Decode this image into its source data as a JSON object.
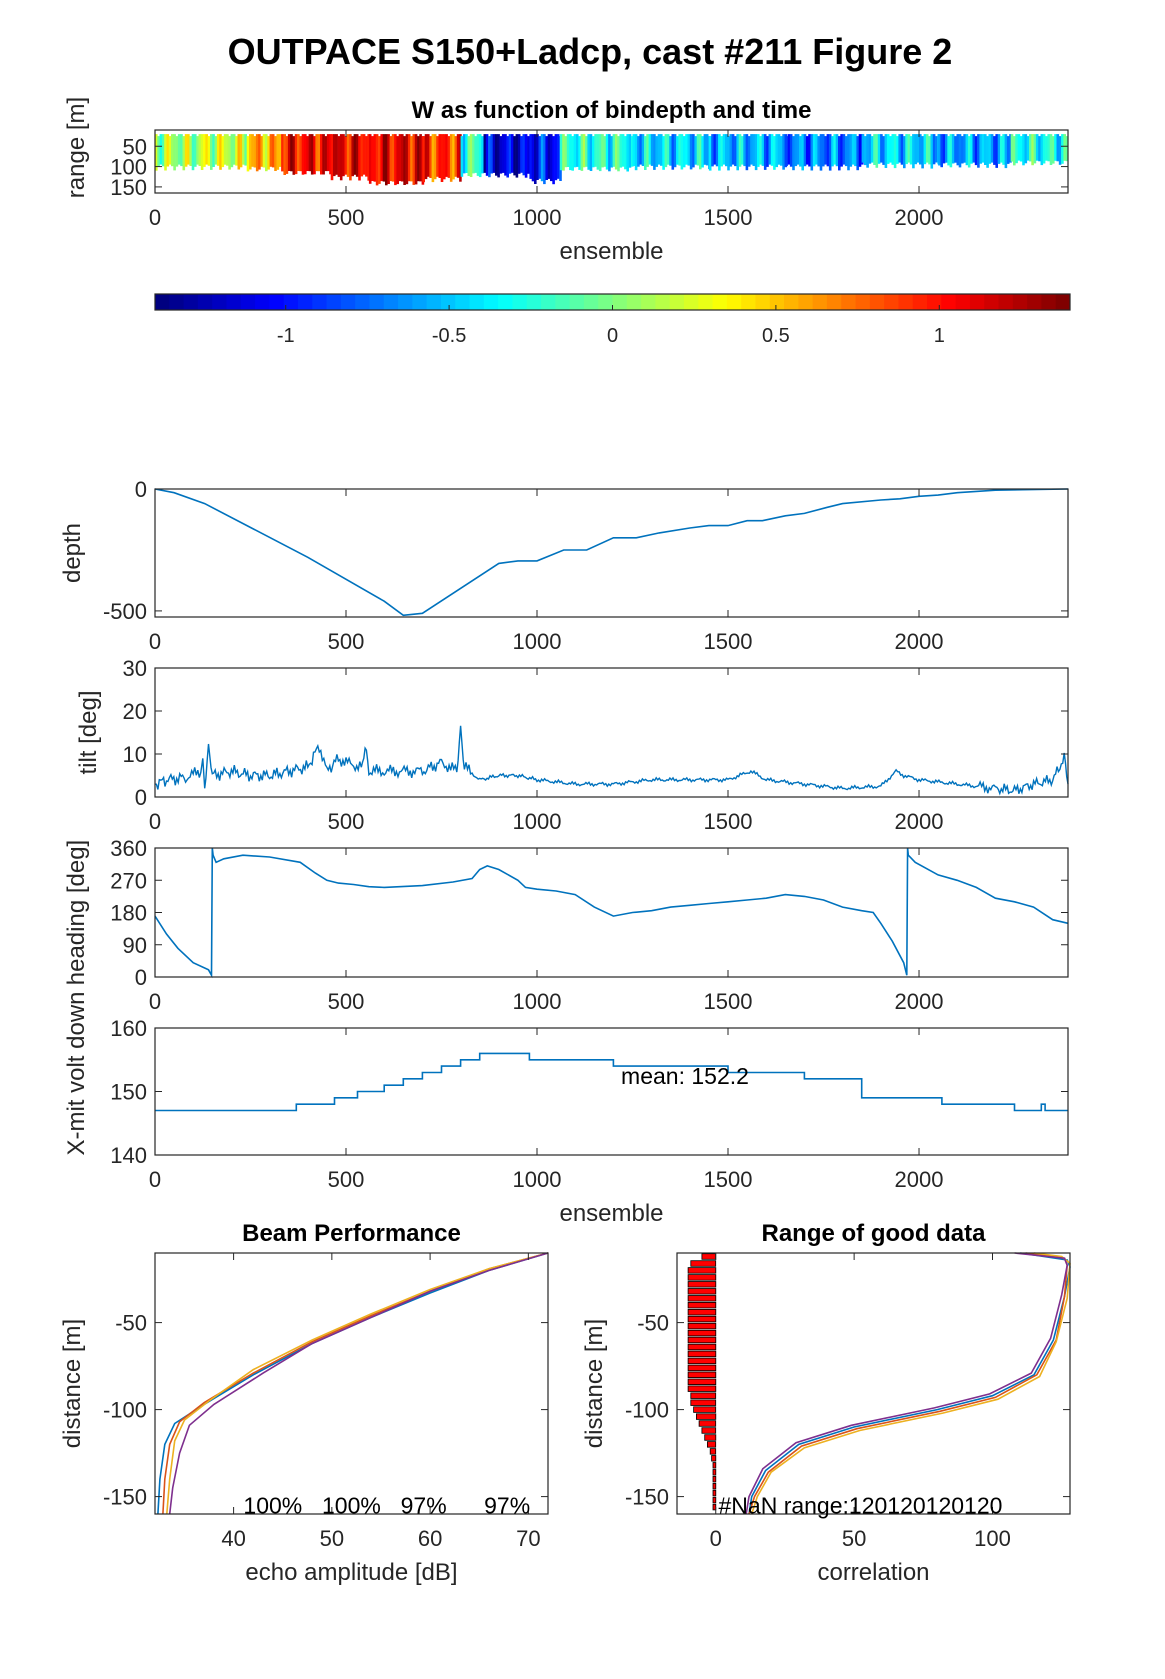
{
  "figure": {
    "title": "OUTPACE S150+Ladcp, cast #211 Figure 2"
  },
  "colors": {
    "line": "#0072BD",
    "series": [
      "#0072BD",
      "#D95319",
      "#EDB120",
      "#7E2F8E"
    ],
    "bar": "#FF0000",
    "axis": "#262626"
  },
  "chart_data": [
    {
      "id": "w-heatmap",
      "type": "heatmap",
      "title": "W as function of bindepth and time",
      "xlabel": "ensemble",
      "ylabel": "range [m]",
      "xlim": [
        0,
        2390
      ],
      "ylim": [
        10,
        165
      ],
      "y_reversed": true,
      "xticks": [
        0,
        500,
        1000,
        1500,
        2000
      ],
      "yticks": [
        50,
        100,
        150
      ],
      "colorbar": {
        "clim": [
          -1.4,
          1.4
        ],
        "ticks": [
          -1,
          -0.5,
          0,
          0.5,
          1
        ],
        "colormap": "jet"
      },
      "segments": [
        {
          "x0": 0,
          "x1": 120,
          "w": 0.1,
          "bottom": 110
        },
        {
          "x0": 120,
          "x1": 240,
          "w": 0.2,
          "bottom": 110
        },
        {
          "x0": 240,
          "x1": 330,
          "w": 0.55,
          "bottom": 115
        },
        {
          "x0": 330,
          "x1": 460,
          "w": 1.05,
          "bottom": 125
        },
        {
          "x0": 460,
          "x1": 560,
          "w": 1.1,
          "bottom": 135
        },
        {
          "x0": 560,
          "x1": 700,
          "w": 1.1,
          "bottom": 150
        },
        {
          "x0": 700,
          "x1": 800,
          "w": 0.9,
          "bottom": 140
        },
        {
          "x0": 800,
          "x1": 860,
          "w": -0.2,
          "bottom": 130
        },
        {
          "x0": 860,
          "x1": 980,
          "w": -1.15,
          "bottom": 130
        },
        {
          "x0": 980,
          "x1": 1060,
          "w": -1.0,
          "bottom": 145
        },
        {
          "x0": 1060,
          "x1": 1250,
          "w": -0.25,
          "bottom": 115
        },
        {
          "x0": 1250,
          "x1": 1450,
          "w": -0.45,
          "bottom": 110
        },
        {
          "x0": 1450,
          "x1": 1650,
          "w": -0.55,
          "bottom": 110
        },
        {
          "x0": 1650,
          "x1": 1850,
          "w": -0.7,
          "bottom": 110
        },
        {
          "x0": 1850,
          "x1": 2050,
          "w": -0.45,
          "bottom": 105
        },
        {
          "x0": 2050,
          "x1": 2240,
          "w": -0.6,
          "bottom": 105
        },
        {
          "x0": 2240,
          "x1": 2390,
          "w": -0.3,
          "bottom": 100
        }
      ]
    },
    {
      "id": "depth",
      "type": "line",
      "xlabel": "",
      "ylabel": "depth",
      "xlim": [
        0,
        2390
      ],
      "ylim": [
        -525,
        0
      ],
      "xticks": [
        0,
        500,
        1000,
        1500,
        2000
      ],
      "yticks": [
        -500,
        0
      ],
      "series": [
        {
          "x": [
            0,
            50,
            130,
            400,
            600,
            650,
            700,
            900,
            950,
            1000,
            1070,
            1130,
            1200,
            1260,
            1320,
            1400,
            1450,
            1500,
            1550,
            1590,
            1650,
            1700,
            1760,
            1800,
            1900,
            1950,
            2000,
            2050,
            2100,
            2200,
            2390
          ],
          "y": [
            0,
            -15,
            -60,
            -280,
            -460,
            -518,
            -510,
            -305,
            -295,
            -295,
            -250,
            -250,
            -200,
            -200,
            -180,
            -160,
            -150,
            -150,
            -130,
            -130,
            -110,
            -100,
            -75,
            -60,
            -45,
            -40,
            -30,
            -25,
            -15,
            -5,
            0
          ]
        }
      ]
    },
    {
      "id": "tilt",
      "type": "line",
      "xlabel": "",
      "ylabel": "tilt [deg]",
      "xlim": [
        0,
        2390
      ],
      "ylim": [
        0,
        30
      ],
      "xticks": [
        0,
        500,
        1000,
        1500,
        2000
      ],
      "yticks": [
        0,
        10,
        20,
        30
      ],
      "series": [
        {
          "x": [
            0,
            30,
            80,
            120,
            125,
            130,
            140,
            150,
            200,
            250,
            300,
            350,
            400,
            430,
            450,
            480,
            500,
            540,
            550,
            560,
            600,
            700,
            750,
            790,
            800,
            810,
            850,
            900,
            950,
            1000,
            1100,
            1200,
            1300,
            1400,
            1500,
            1560,
            1600,
            1700,
            1800,
            1900,
            1940,
            1960,
            2000,
            2100,
            2200,
            2250,
            2300,
            2350,
            2380,
            2390
          ],
          "y": [
            3,
            4,
            4.5,
            6,
            10,
            3,
            11,
            5,
            6,
            5,
            5,
            6,
            7,
            12,
            6,
            9,
            8,
            7,
            11,
            6,
            6,
            6,
            8,
            6,
            15,
            7,
            4,
            5,
            5,
            4,
            3,
            3,
            4,
            4,
            4,
            6,
            4,
            3,
            2,
            2.5,
            6,
            5,
            4,
            3,
            2,
            1.5,
            3,
            4,
            9,
            3
          ]
        }
      ]
    },
    {
      "id": "heading",
      "type": "line",
      "xlabel": "",
      "ylabel": "heading [deg]",
      "xlim": [
        0,
        2390
      ],
      "ylim": [
        0,
        360
      ],
      "xticks": [
        0,
        500,
        1000,
        1500,
        2000
      ],
      "yticks": [
        0,
        90,
        180,
        270,
        360
      ],
      "series": [
        {
          "x": [
            0,
            30,
            60,
            100,
            140,
            148,
            150,
            152,
            160,
            180,
            230,
            300,
            380,
            420,
            450,
            480,
            520,
            560,
            600,
            700,
            780,
            830,
            850,
            870,
            900,
            950,
            970,
            1000,
            1050,
            1100,
            1150,
            1200,
            1250,
            1300,
            1350,
            1400,
            1450,
            1500,
            1550,
            1600,
            1650,
            1700,
            1750,
            1800,
            1850,
            1880,
            1900,
            1930,
            1960,
            1968,
            1970,
            1972,
            1990,
            2050,
            2100,
            2150,
            2200,
            2250,
            2300,
            2350,
            2390
          ],
          "y": [
            170,
            120,
            80,
            40,
            20,
            5,
            360,
            340,
            320,
            330,
            340,
            335,
            320,
            290,
            270,
            262,
            258,
            252,
            250,
            255,
            265,
            275,
            300,
            310,
            300,
            270,
            250,
            245,
            240,
            230,
            195,
            170,
            180,
            185,
            195,
            200,
            205,
            210,
            215,
            220,
            230,
            225,
            215,
            195,
            185,
            180,
            150,
            100,
            40,
            5,
            360,
            340,
            320,
            285,
            270,
            250,
            220,
            210,
            195,
            160,
            150
          ]
        }
      ]
    },
    {
      "id": "xmit-volt",
      "type": "line",
      "xlabel": "ensemble",
      "ylabel": "X-mit volt down",
      "xlim": [
        0,
        2390
      ],
      "ylim": [
        140,
        160
      ],
      "xticks": [
        0,
        500,
        1000,
        1500,
        2000
      ],
      "yticks": [
        140,
        150,
        160
      ],
      "annotation": "mean: 152.2",
      "annotation_at": [
        1220,
        151.2
      ],
      "series": [
        {
          "x": [
            0,
            370,
            370,
            470,
            470,
            530,
            530,
            600,
            600,
            650,
            650,
            700,
            700,
            750,
            750,
            800,
            800,
            850,
            850,
            980,
            980,
            1200,
            1200,
            1500,
            1500,
            1700,
            1700,
            1850,
            1850,
            2060,
            2060,
            2250,
            2250,
            2320,
            2320,
            2330,
            2330,
            2390
          ],
          "y": [
            147,
            147,
            148,
            148,
            149,
            149,
            150,
            150,
            151,
            151,
            152,
            152,
            153,
            153,
            154,
            154,
            155,
            155,
            156,
            156,
            155,
            155,
            154,
            154,
            153,
            153,
            152,
            152,
            149,
            149,
            148,
            148,
            147,
            147,
            148,
            148,
            147,
            147
          ]
        }
      ]
    },
    {
      "id": "beam-performance",
      "type": "line",
      "title": "Beam Performance",
      "xlabel": "echo amplitude [dB]",
      "ylabel": "distance [m]",
      "xlim": [
        32,
        72
      ],
      "ylim": [
        -160,
        -10
      ],
      "xticks": [
        40,
        50,
        60,
        70
      ],
      "yticks": [
        -150,
        -100,
        -50
      ],
      "annotations": [
        {
          "text": "100%",
          "x": 41
        },
        {
          "text": "100%",
          "x": 49
        },
        {
          "text": "97%",
          "x": 57
        },
        {
          "text": "97%",
          "x": 65.5
        }
      ],
      "annotation_y": -155,
      "series": [
        {
          "x": [
            72,
            66,
            60,
            54,
            48,
            42,
            37,
            34,
            33,
            32.5,
            32.3
          ],
          "y": [
            -10,
            -20,
            -33,
            -47,
            -62,
            -80,
            -97,
            -108,
            -120,
            -140,
            -160
          ]
        },
        {
          "x": [
            72,
            66,
            60,
            54,
            48,
            42,
            37,
            34.5,
            33.5,
            33,
            32.8
          ],
          "y": [
            -10,
            -19,
            -32,
            -46,
            -61,
            -79,
            -96,
            -107,
            -120,
            -140,
            -160
          ]
        },
        {
          "x": [
            72,
            66,
            60,
            54,
            48,
            42,
            37.5,
            35,
            34,
            33.5,
            33.2
          ],
          "y": [
            -10,
            -19,
            -31,
            -45,
            -60,
            -77,
            -95,
            -106,
            -118,
            -140,
            -160
          ]
        },
        {
          "x": [
            72,
            66,
            60,
            54,
            48,
            43,
            38,
            35.5,
            34.5,
            33.8,
            33.5
          ],
          "y": [
            -10,
            -20,
            -32,
            -47,
            -62,
            -79,
            -97,
            -109,
            -125,
            -145,
            -160
          ]
        }
      ]
    },
    {
      "id": "range-good-data",
      "type": "line",
      "title": "Range of good data",
      "xlabel": "correlation",
      "ylabel": "distance [m]",
      "xlim": [
        -14,
        128
      ],
      "ylim": [
        -160,
        -10
      ],
      "xticks": [
        0,
        50,
        100
      ],
      "yticks": [
        -150,
        -100,
        -50
      ],
      "annotation": "#NaN range:120120120120",
      "annotation_at": [
        1,
        -155
      ],
      "bars": {
        "y": [
          -12,
          -16,
          -20,
          -24,
          -28,
          -32,
          -36,
          -40,
          -44,
          -48,
          -52,
          -56,
          -60,
          -64,
          -68,
          -72,
          -76,
          -80,
          -84,
          -88,
          -92,
          -96,
          -100,
          -104,
          -108,
          -112,
          -116,
          -120,
          -124,
          -128,
          -132,
          -136,
          -140,
          -144,
          -148,
          -152,
          -156
        ],
        "value": [
          5,
          9,
          10,
          10,
          10,
          10,
          10,
          10,
          10,
          10,
          10,
          10,
          10,
          10,
          10,
          10,
          10,
          10,
          10,
          10,
          9,
          9,
          8,
          7,
          6,
          5,
          4,
          3,
          2,
          1.5,
          1,
          1,
          1,
          1,
          1,
          1,
          1
        ]
      },
      "series": [
        {
          "x": [
            12,
            13,
            18,
            30,
            50,
            80,
            100,
            115,
            122,
            126,
            128,
            127,
            110
          ],
          "y": [
            -160,
            -150,
            -135,
            -120,
            -110,
            -100,
            -92,
            -80,
            -60,
            -35,
            -18,
            -14,
            -10
          ]
        },
        {
          "x": [
            12,
            14,
            19,
            31,
            51,
            81,
            101,
            116,
            123,
            126,
            127,
            126,
            112
          ],
          "y": [
            -160,
            -150,
            -136,
            -121,
            -111,
            -101,
            -93,
            -80,
            -60,
            -35,
            -17,
            -13,
            -10
          ]
        },
        {
          "x": [
            13,
            15,
            20,
            32,
            52,
            82,
            102,
            117,
            123,
            127,
            128,
            125,
            115
          ],
          "y": [
            -160,
            -150,
            -136,
            -122,
            -112,
            -102,
            -94,
            -81,
            -61,
            -36,
            -16,
            -12,
            -10
          ]
        },
        {
          "x": [
            11,
            12,
            17,
            29,
            49,
            79,
            99,
            114,
            121,
            125,
            127,
            126,
            108
          ],
          "y": [
            -160,
            -150,
            -134,
            -119,
            -109,
            -99,
            -91,
            -79,
            -59,
            -34,
            -17,
            -13,
            -10
          ]
        }
      ]
    }
  ]
}
